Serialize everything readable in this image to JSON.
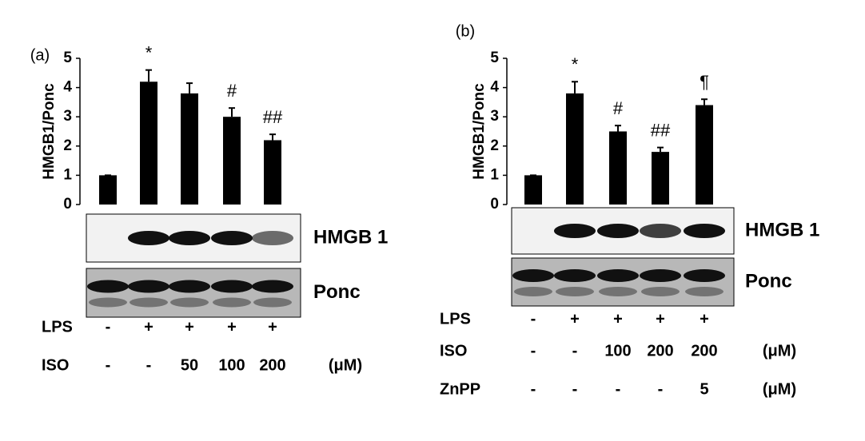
{
  "chart_data": [
    {
      "type": "bar",
      "panel": "(a)",
      "y_label": "HMGB1/Ponc",
      "values": [
        1,
        4.2,
        3.8,
        3.0,
        2.2
      ],
      "errors": [
        0,
        0.4,
        0.35,
        0.3,
        0.2
      ],
      "annotations": [
        null,
        "*",
        null,
        "#",
        "##"
      ],
      "color": "#000000",
      "ylim": [
        0,
        5
      ],
      "yticks": [
        0,
        1,
        2,
        3,
        4,
        5
      ],
      "blots": [
        "HMGB 1",
        "Ponc"
      ],
      "conditions": [
        {
          "name": "LPS",
          "values": [
            "-",
            "+",
            "+",
            "+",
            "+"
          ]
        },
        {
          "name": "ISO",
          "values": [
            "-",
            "-",
            "50",
            "100",
            "200"
          ],
          "unit": "(μM)"
        }
      ]
    },
    {
      "type": "bar",
      "panel": "(b)",
      "y_label": "HMGB1/Ponc",
      "values": [
        1,
        3.8,
        2.5,
        1.8,
        3.4
      ],
      "errors": [
        0,
        0.4,
        0.2,
        0.15,
        0.2
      ],
      "annotations": [
        null,
        "*",
        "#",
        "##",
        "¶"
      ],
      "color": "#000000",
      "ylim": [
        0,
        5
      ],
      "yticks": [
        0,
        1,
        2,
        3,
        4,
        5
      ],
      "blots": [
        "HMGB 1",
        "Ponc"
      ],
      "conditions": [
        {
          "name": "LPS",
          "values": [
            "-",
            "+",
            "+",
            "+",
            "+"
          ]
        },
        {
          "name": "ISO",
          "values": [
            "-",
            "-",
            "100",
            "200",
            "200"
          ],
          "unit": "(μM)"
        },
        {
          "name": "ZnPP",
          "values": [
            "-",
            "-",
            "-",
            "-",
            "5"
          ],
          "unit": "(μM)"
        }
      ]
    }
  ]
}
